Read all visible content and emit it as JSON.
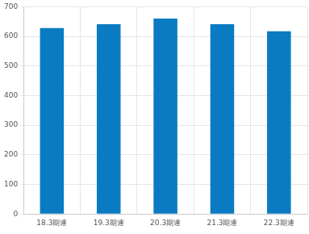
{
  "chart_data": {
    "type": "bar",
    "categories": [
      "18.3期連",
      "19.3期連",
      "20.3期連",
      "21.3期連",
      "22.3期連"
    ],
    "values": [
      628,
      641,
      660,
      641,
      617
    ],
    "color": "#0a7bc2",
    "ylim": [
      0,
      700
    ],
    "yticks": [
      0,
      100,
      200,
      300,
      400,
      500,
      600,
      700
    ],
    "grid": true
  }
}
